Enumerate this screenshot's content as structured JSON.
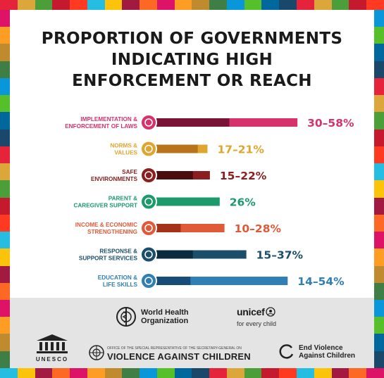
{
  "title_lines": [
    "PROPORTION OF GOVERNMENTS",
    "INDICATING HIGH",
    "ENFORCEMENT OR REACH"
  ],
  "chart_data": {
    "type": "bar",
    "orientation": "horizontal",
    "unit": "%",
    "categories": [
      "IMPLEMENTATION & ENFORCEMENT OF LAWS",
      "NORMS & VALUES",
      "SAFE ENVIRONMENTS",
      "PARENT & CAREGIVER SUPPORT",
      "INCOME & ECONOMIC STRENGTHENING",
      "RESPONSE & SUPPORT SERVICES",
      "EDUCATION & LIFE SKILLS"
    ],
    "items": [
      {
        "label_lines": [
          "IMPLEMENTATION &",
          "ENFORCEMENT OF LAWS"
        ],
        "low": 30,
        "high": 58,
        "value_label": "30–58%",
        "color": "#d6336c",
        "dark": "#7a1436"
      },
      {
        "label_lines": [
          "NORMS &",
          "VALUES"
        ],
        "low": 17,
        "high": 21,
        "value_label": "17–21%",
        "color": "#e0a52e",
        "dark": "#b8741a"
      },
      {
        "label_lines": [
          "SAFE",
          "ENVIRONMENTS"
        ],
        "low": 15,
        "high": 22,
        "value_label": "15–22%",
        "color": "#8b1e1e",
        "dark": "#4a0c0c"
      },
      {
        "label_lines": [
          "PARENT &",
          "CAREGIVER SUPPORT"
        ],
        "low": 26,
        "high": 26,
        "value_label": "26%",
        "color": "#1d9a6c",
        "dark": "#1d9a6c"
      },
      {
        "label_lines": [
          "INCOME & ECONOMIC",
          "STRENGTHENING"
        ],
        "low": 10,
        "high": 28,
        "value_label": "10–28%",
        "color": "#e05a3a",
        "dark": "#a33216"
      },
      {
        "label_lines": [
          "RESPONSE &",
          "SUPPORT SERVICES"
        ],
        "low": 15,
        "high": 37,
        "value_label": "15–37%",
        "color": "#1b4e6b",
        "dark": "#0a2b3f"
      },
      {
        "label_lines": [
          "EDUCATION &",
          "LIFE SKILLS"
        ],
        "low": 14,
        "high": 54,
        "value_label": "14–54%",
        "color": "#2f7fb5",
        "dark": "#154d78"
      }
    ]
  },
  "footer": {
    "who_line1": "World Health",
    "who_line2": "Organization",
    "unicef_name": "unicef",
    "unicef_tag": "for every child",
    "unesco_name": "UNESCO",
    "vac_small": "OFFICE OF THE SPECIAL REPRESENTATIVE OF THE SECRETARY-GENERAL ON",
    "vac_big": "VIOLENCE AGAINST CHILDREN",
    "evac_line1": "End Violence",
    "evac_line2": "Against Children"
  },
  "border_colors": [
    "#e5243b",
    "#dda63a",
    "#4c9f38",
    "#c5192d",
    "#ff3a21",
    "#26bde2",
    "#fcc30b",
    "#a21942",
    "#fd6925",
    "#dd1367",
    "#fd9d24",
    "#bf8b2e",
    "#3f7e44",
    "#0a97d9",
    "#56c02b",
    "#00689d",
    "#19486a"
  ]
}
